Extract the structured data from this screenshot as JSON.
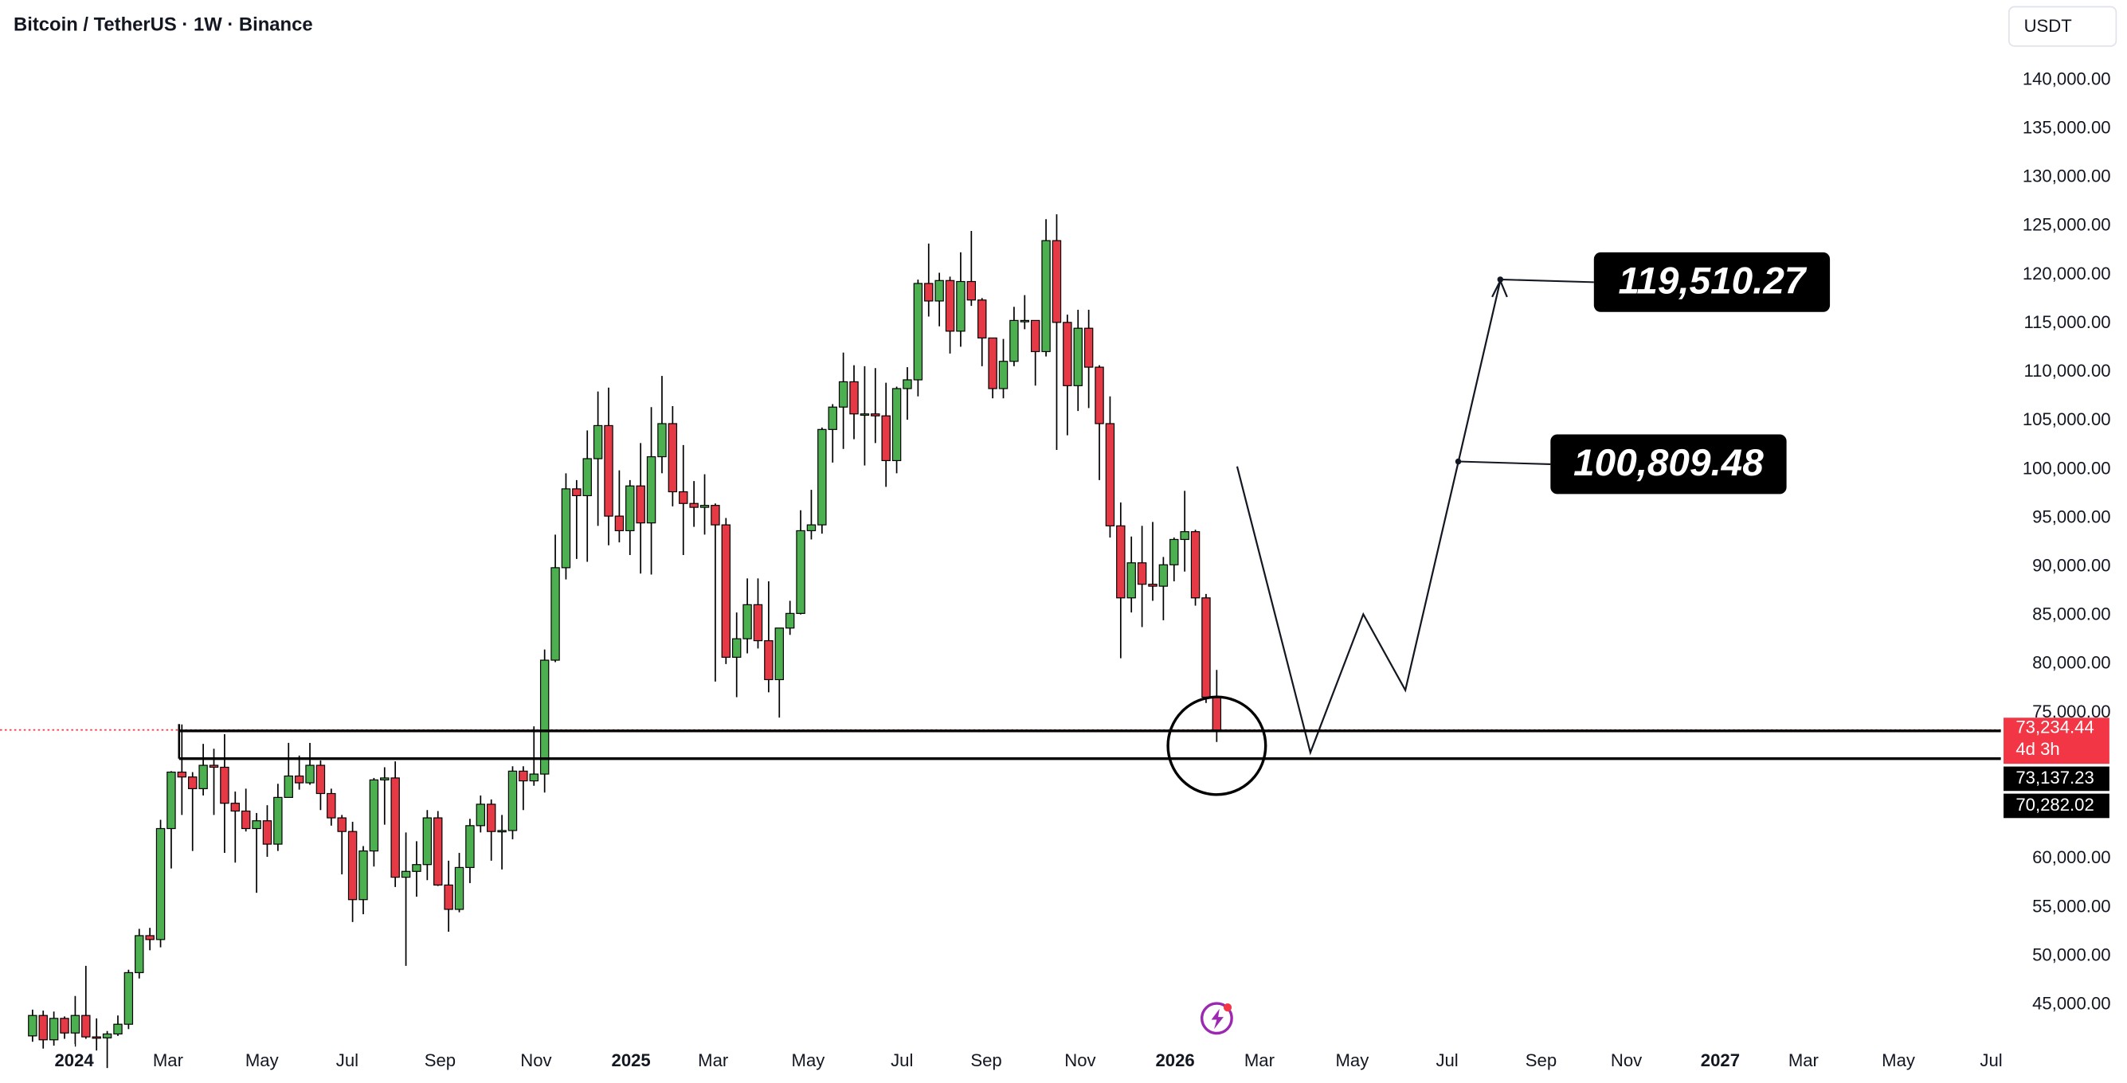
{
  "chart_data": {
    "type": "candlestick",
    "title": "Bitcoin / TetherUS · 1W · Binance",
    "currency": "USDT",
    "up_color": "#4caf50",
    "down_color": "#e53945",
    "wick_color": "#000000",
    "open": [
      41800,
      43900,
      41400,
      43600,
      42100,
      43900,
      41700,
      41600,
      42000,
      43000,
      48300,
      52100,
      51700,
      63100,
      68900,
      68400,
      67200,
      69600,
      69400,
      65700,
      64900,
      63100,
      63900,
      61500,
      66300,
      68500,
      67800,
      69600,
      66700,
      64200,
      62800,
      55800,
      60800,
      68100,
      68300,
      58100,
      58700,
      59400,
      64200,
      57300,
      54800,
      59100,
      63400,
      65600,
      62800,
      62900,
      69000,
      68000,
      68700,
      80400,
      89900,
      98000,
      97300,
      101100,
      104500,
      95200,
      93700,
      98300,
      94500,
      101300,
      104700,
      97700,
      96500,
      96100,
      96300,
      94300,
      80700,
      82600,
      86100,
      82400,
      78400,
      83700,
      85200,
      93700,
      94300,
      104100,
      106400,
      109000,
      105700,
      105700,
      105500,
      100900,
      108300,
      109200,
      119100,
      117300,
      119400,
      114200,
      119300,
      117400,
      113500,
      108300,
      111100,
      115300,
      115300,
      112100,
      123500,
      115100,
      108600,
      114500,
      110500,
      104700,
      94200,
      86800,
      90400,
      88200,
      88000,
      90200,
      92800,
      93600,
      86800,
      76600
    ],
    "high": [
      44500,
      44400,
      44300,
      43800,
      45900,
      49000,
      43600,
      42300,
      43900,
      48600,
      52800,
      52900,
      64000,
      69000,
      73800,
      68900,
      71800,
      71300,
      72800,
      66900,
      67200,
      64700,
      65500,
      67700,
      71900,
      70600,
      71900,
      70100,
      67200,
      64500,
      63800,
      61300,
      68300,
      69400,
      70000,
      62700,
      61800,
      65000,
      64900,
      59800,
      60600,
      64100,
      66500,
      66100,
      64500,
      69500,
      69500,
      73600,
      81500,
      93300,
      99600,
      98900,
      104000,
      108000,
      108400,
      99900,
      98900,
      102700,
      106400,
      109600,
      106500,
      102500,
      98800,
      99500,
      96500,
      95000,
      85300,
      88800,
      88800,
      88500,
      83600,
      86500,
      95800,
      97900,
      104300,
      106700,
      112000,
      110700,
      110600,
      110400,
      108900,
      108500,
      110500,
      119500,
      123200,
      120200,
      119800,
      122300,
      124500,
      117600,
      113500,
      113400,
      116700,
      117900,
      115300,
      125700,
      126200,
      115900,
      116400,
      116400,
      110700,
      107500,
      96600,
      93100,
      94200,
      94600,
      91000,
      93000,
      97800,
      93800,
      87200,
      79400
    ],
    "low": [
      41200,
      40500,
      40800,
      41500,
      40700,
      41500,
      40300,
      38500,
      41800,
      42500,
      47700,
      50600,
      50900,
      59000,
      64500,
      60800,
      66500,
      64500,
      60600,
      59600,
      62800,
      56500,
      60200,
      60800,
      66300,
      67100,
      67600,
      65000,
      63400,
      58400,
      53500,
      54300,
      59200,
      63500,
      57100,
      49000,
      56100,
      57800,
      57200,
      52500,
      54500,
      57500,
      62700,
      59800,
      58900,
      62000,
      65000,
      67500,
      66800,
      80200,
      88700,
      90800,
      90500,
      94200,
      92200,
      92500,
      91200,
      89300,
      89200,
      99600,
      96200,
      91200,
      94100,
      93300,
      78200,
      80000,
      76600,
      81100,
      81600,
      77100,
      74500,
      83000,
      85100,
      92800,
      93400,
      100700,
      102100,
      103100,
      100400,
      102700,
      98200,
      99600,
      105100,
      107500,
      115700,
      114700,
      111900,
      112600,
      116800,
      110600,
      107300,
      107300,
      110600,
      114400,
      108600,
      111600,
      102000,
      103500,
      106000,
      106300,
      98900,
      93000,
      80600,
      85300,
      83800,
      86500,
      84500,
      88500,
      89500,
      86000,
      76000,
      72000
    ],
    "close": [
      43900,
      41400,
      43600,
      42100,
      43900,
      41700,
      41600,
      42000,
      43000,
      48300,
      52100,
      51700,
      63100,
      68900,
      68400,
      67200,
      69600,
      69400,
      65700,
      64900,
      63100,
      63900,
      61500,
      66300,
      68500,
      67800,
      69600,
      66700,
      64200,
      62800,
      55800,
      60800,
      68100,
      68300,
      58100,
      58700,
      59400,
      64200,
      57300,
      54800,
      59100,
      63400,
      65600,
      62800,
      62900,
      69000,
      68000,
      68700,
      80400,
      89900,
      98000,
      97300,
      101100,
      104500,
      95200,
      93700,
      98300,
      94500,
      101300,
      104700,
      97700,
      96500,
      96100,
      96300,
      94300,
      80700,
      82600,
      86100,
      82400,
      78400,
      83700,
      85200,
      93700,
      94300,
      104100,
      106400,
      109000,
      105700,
      105700,
      105500,
      100900,
      108300,
      109200,
      119100,
      117300,
      119400,
      114200,
      119300,
      117400,
      113500,
      108300,
      111100,
      115300,
      115300,
      112100,
      123500,
      115100,
      108600,
      114500,
      110500,
      104700,
      94200,
      86800,
      90400,
      88200,
      88000,
      90200,
      92800,
      93600,
      86800,
      76600,
      73234.44
    ],
    "xlim": [
      -3.05,
      184.5
    ],
    "xticks": [
      {
        "value": 3.9,
        "label": "2024"
      },
      {
        "value": 12.7,
        "label": "Mar"
      },
      {
        "value": 21.5,
        "label": "May"
      },
      {
        "value": 29.5,
        "label": "Jul"
      },
      {
        "value": 38.2,
        "label": "Sep"
      },
      {
        "value": 47.2,
        "label": "Nov"
      },
      {
        "value": 56.1,
        "label": "2025"
      },
      {
        "value": 63.8,
        "label": "Mar"
      },
      {
        "value": 72.7,
        "label": "May"
      },
      {
        "value": 81.5,
        "label": "Jul"
      },
      {
        "value": 89.4,
        "label": "Sep"
      },
      {
        "value": 98.2,
        "label": "Nov"
      },
      {
        "value": 107.1,
        "label": "2026"
      },
      {
        "value": 115.0,
        "label": "Mar"
      },
      {
        "value": 123.7,
        "label": "May"
      },
      {
        "value": 132.6,
        "label": "Jul"
      },
      {
        "value": 141.4,
        "label": "Sep"
      },
      {
        "value": 149.4,
        "label": "Nov"
      },
      {
        "value": 158.2,
        "label": "2027"
      },
      {
        "value": 166.0,
        "label": "Mar"
      },
      {
        "value": 174.9,
        "label": "May"
      },
      {
        "value": 183.6,
        "label": "Jul"
      }
    ],
    "ylim": [
      40960,
      148220
    ],
    "yticks": [
      {
        "value": 45000,
        "label": "45,000.00"
      },
      {
        "value": 50000,
        "label": "50,000.00"
      },
      {
        "value": 55000,
        "label": "55,000.00"
      },
      {
        "value": 60000,
        "label": "60,000.00"
      },
      {
        "value": 75000,
        "label": "75,000.00"
      },
      {
        "value": 80000,
        "label": "80,000.00"
      },
      {
        "value": 85000,
        "label": "85,000.00"
      },
      {
        "value": 90000,
        "label": "90,000.00"
      },
      {
        "value": 95000,
        "label": "95,000.00"
      },
      {
        "value": 100000,
        "label": "100,000.00"
      },
      {
        "value": 105000,
        "label": "105,000.00"
      },
      {
        "value": 110000,
        "label": "110,000.00"
      },
      {
        "value": 115000,
        "label": "115,000.00"
      },
      {
        "value": 120000,
        "label": "120,000.00"
      },
      {
        "value": 125000,
        "label": "125,000.00"
      },
      {
        "value": 130000,
        "label": "130,000.00"
      },
      {
        "value": 135000,
        "label": "135,000.00"
      },
      {
        "value": 140000,
        "label": "140,000.00"
      }
    ],
    "last_price": {
      "value": 73234.44,
      "label": "73,234.44",
      "countdown": "4d 3h",
      "color": "#f23645"
    },
    "price_lines": [
      {
        "value": 73137.23,
        "label": "73,137.23"
      },
      {
        "value": 70282.02,
        "label": "70,282.02"
      }
    ],
    "annotations": [
      {
        "value": 119510.27,
        "label": "119,510.27"
      },
      {
        "value": 100809.48,
        "label": "100,809.48"
      }
    ]
  }
}
